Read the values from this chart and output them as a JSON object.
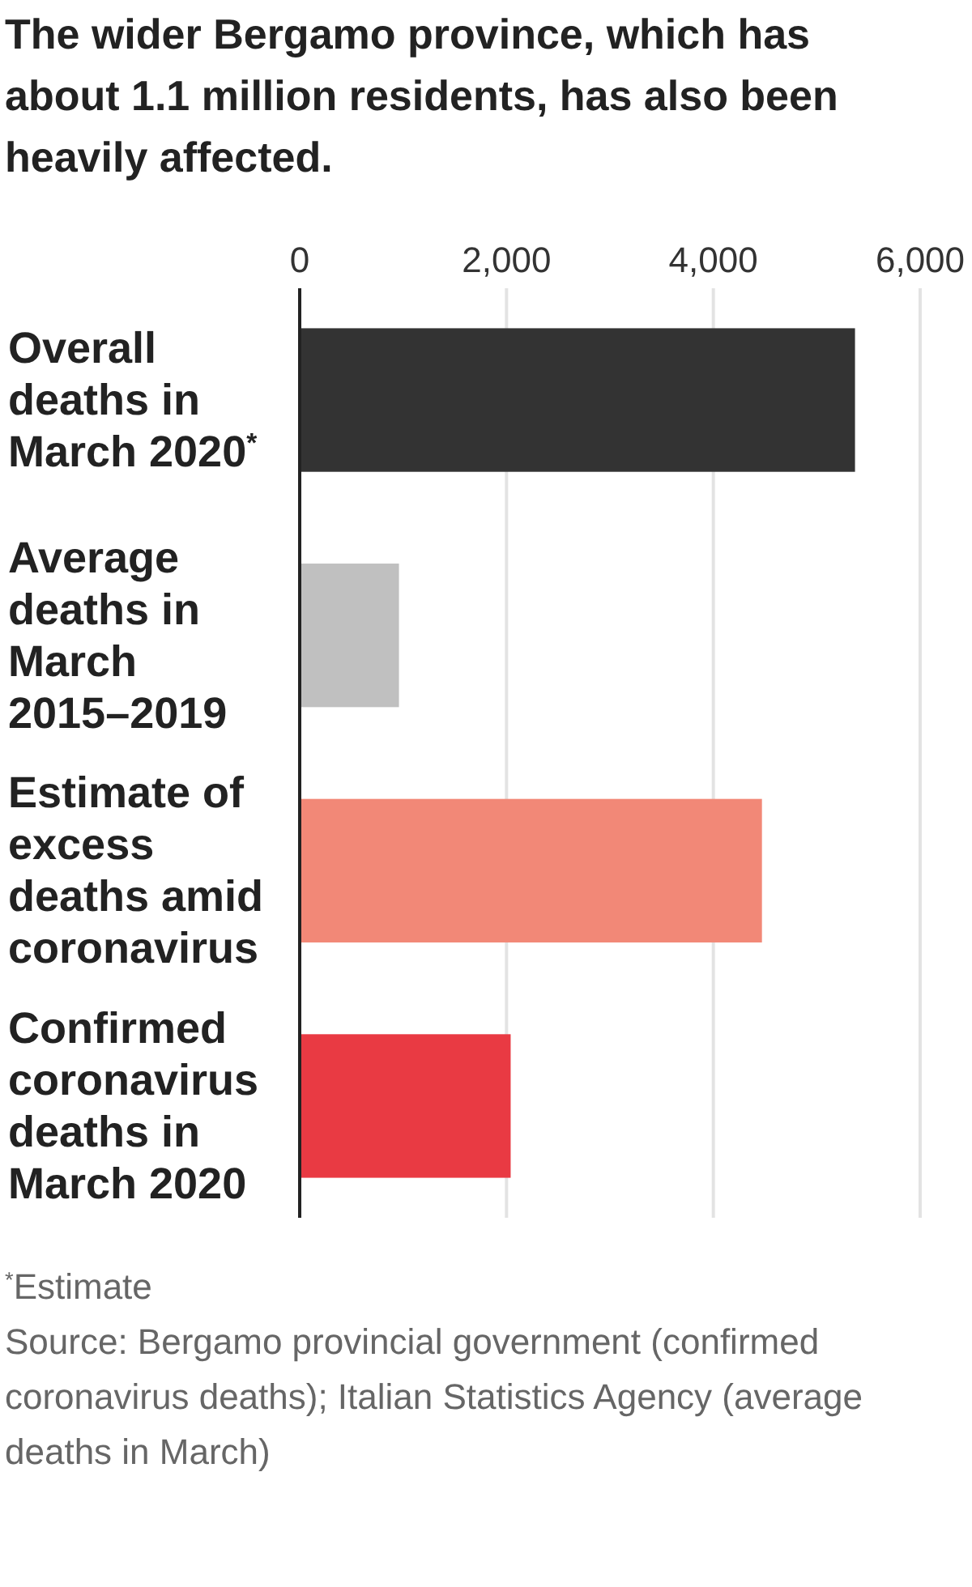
{
  "chart_data": {
    "type": "bar",
    "orientation": "horizontal",
    "title": "The wider Bergamo province, which has about 1.1 million residents, has also been heavily affected.",
    "categories": [
      "Overall deaths in March 2020$^{*}$",
      "Average deaths in March 2015–2019",
      "Estimate of excess deaths amid coronavirus",
      "Confirmed coronavirus deaths in March 2020"
    ],
    "values": [
      5370,
      960,
      4470,
      2040
    ],
    "colors": [
      "#333333",
      "#c0c0c0",
      "#f28877",
      "#e93a43"
    ],
    "xlim": [
      0,
      6000
    ],
    "xticks": [
      0,
      {
        "value": 2000,
        "label": "2,000"
      },
      {
        "value": 4000,
        "label": "4,000"
      },
      {
        "value": 6000,
        "label": "6,000"
      }
    ],
    "grid": "x",
    "annotations": [
      "$^{*}$Estimate",
      "Source: Bergamo provincial government (confirmed coronavirus deaths); Italian Statistics Agency (average deaths in March)"
    ]
  }
}
